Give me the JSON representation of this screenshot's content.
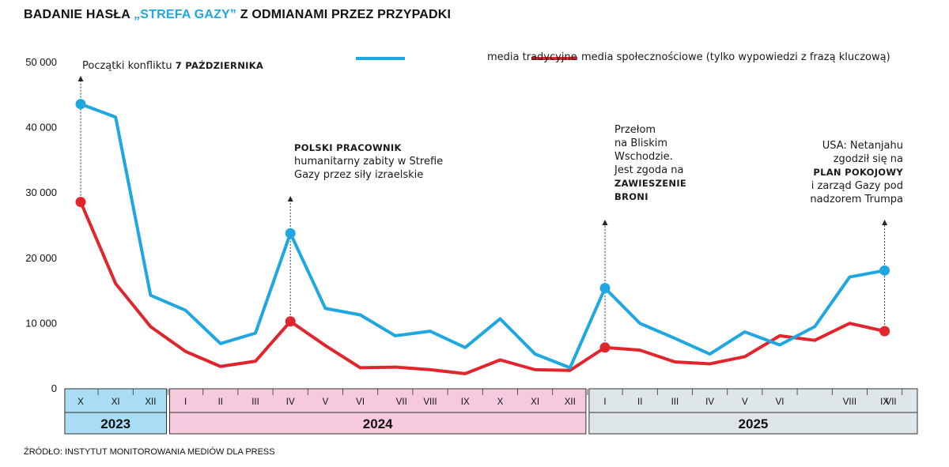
{
  "header": {
    "title_pre": "BADANIE HASŁA ",
    "title_highlight": "„STREFA GAZY”",
    "title_post": " Z ODMIANAMI PRZEZ PRZYPADKI"
  },
  "source": "ŹRÓDŁO: INSTYTUT MONITOROWANIA MEDIÓW DLA PRESS",
  "colors": {
    "social": "#1fa7e0",
    "traditional": "#e0252c",
    "year2023": "#a9dcf5",
    "year2024": "#f6c9dc",
    "year2025": "#dfe6ea"
  },
  "annotations": {
    "a1": {
      "pre": "Początki konfliktu ",
      "bold": "7 PAŹDZIERNIKA"
    },
    "a2": {
      "bold": "POLSKI PRACOWNIK",
      "l2": "humanitarny zabity w Strefie",
      "l3": "Gazy przez siły izraelskie"
    },
    "a3": {
      "l1": "Przełom",
      "l2": "na Bliskim",
      "l3": "Wschodzie.",
      "l4": "Jest zgoda na",
      "b1": "ZAWIESZENIE",
      "b2": "BRONI"
    },
    "a4": {
      "l1": "USA: Netanjahu",
      "l2": "zgodził się na",
      "b1": "PLAN POKOJOWY",
      "l4": "i zarząd Gazy pod",
      "l5": "nadzorem Trumpa"
    }
  },
  "chart_data": {
    "type": "line",
    "title": "BADANIE HASŁA „STREFA GAZY” Z ODMIANAMI PRZEZ PRZYPADKI",
    "ylim": [
      0,
      50000
    ],
    "y_ticks": [
      "0",
      "10 000",
      "20 000",
      "30 000",
      "40 000",
      "50 000"
    ],
    "categories": [
      "X",
      "XI",
      "XII",
      "I",
      "II",
      "III",
      "IV",
      "V",
      "VI",
      "VII",
      "VIII",
      "IX",
      "X",
      "XI",
      "XII",
      "I",
      "II",
      "III",
      "IV",
      "V",
      "VI",
      "VII",
      "VIII",
      "IX"
    ],
    "category_labels": [
      "X",
      "XI",
      "XII",
      "I",
      "II",
      "III",
      "IV",
      "V",
      "VI",
      "",
      "VIII",
      "IX",
      "X",
      "XI",
      "XII",
      "I",
      "II",
      "III",
      "IV",
      "V",
      "VI",
      "",
      "VIII",
      "IX"
    ],
    "extra_labels": [
      {
        "after_index": 9,
        "text": "VII"
      },
      {
        "after_index": 23,
        "text": "VII"
      }
    ],
    "years": [
      {
        "label": "2023",
        "start": 0,
        "end": 2
      },
      {
        "label": "2024",
        "start": 3,
        "end": 14
      },
      {
        "label": "2025",
        "start": 15,
        "end": 23
      }
    ],
    "series": [
      {
        "name": "media społecznościowe (tylko wypowiedzi z frazą kluczową)",
        "color": "#1fa7e0",
        "values": [
          43500,
          41500,
          14200,
          11900,
          6800,
          8400,
          23700,
          12200,
          11200,
          8000,
          8700,
          6200,
          10600,
          5200,
          3100,
          15300,
          9900,
          7600,
          5200,
          8600,
          6600,
          9400,
          17000,
          18000
        ]
      },
      {
        "name": "media tradycyjne",
        "color": "#e0252c",
        "values": [
          28500,
          16000,
          9400,
          5600,
          3300,
          4100,
          10200,
          6500,
          3100,
          3200,
          2800,
          2200,
          4300,
          2800,
          2700,
          6200,
          5800,
          4000,
          3700,
          4800,
          8000,
          7300,
          9900,
          8700
        ]
      }
    ],
    "highlight_points": [
      0,
      6,
      15,
      23
    ],
    "grid": false,
    "legend_position": "top"
  }
}
